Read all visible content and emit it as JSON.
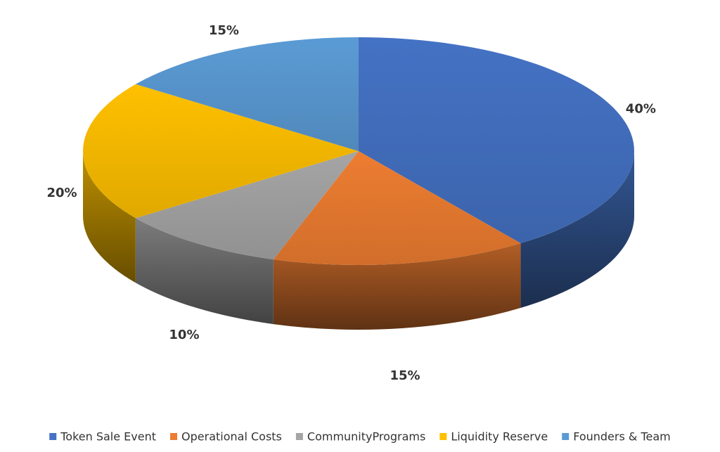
{
  "chart_data": {
    "type": "pie3d",
    "categories": [
      "Token Sale Event",
      "Operational Costs",
      "CommunityPrograms",
      "Liquidity Reserve",
      "Founders & Team"
    ],
    "values": [
      40,
      15,
      10,
      20,
      15
    ],
    "value_labels": [
      "40%",
      "15%",
      "10%",
      "20%",
      "15%"
    ],
    "colors": [
      "#4472c4",
      "#ed7d31",
      "#a5a5a5",
      "#ffc000",
      "#5b9bd5"
    ],
    "legend": "bottom"
  }
}
